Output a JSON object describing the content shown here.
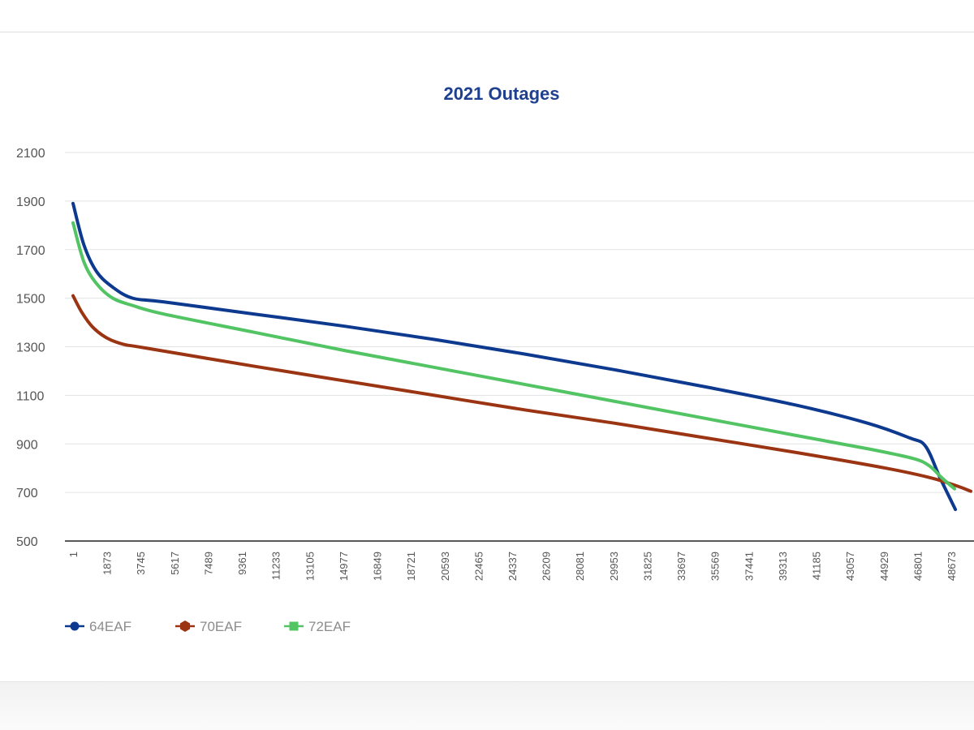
{
  "chart_data": {
    "type": "line",
    "title": "2021 Outages",
    "xlabel": "",
    "ylabel": "",
    "ylim": [
      500,
      2100
    ],
    "yticks": [
      500,
      700,
      900,
      1100,
      1300,
      1500,
      1700,
      1900,
      2100
    ],
    "x_tick_labels": [
      "1",
      "1873",
      "3745",
      "5617",
      "7489",
      "9361",
      "11233",
      "13105",
      "14977",
      "16849",
      "18721",
      "20593",
      "22465",
      "24337",
      "26209",
      "28081",
      "29953",
      "31825",
      "33697",
      "35569",
      "37441",
      "39313",
      "41185",
      "43057",
      "44929",
      "46801",
      "48673"
    ],
    "xlim": [
      1,
      49700
    ],
    "grid": "horizontal",
    "legend_position": "bottom-left",
    "series": [
      {
        "name": "64EAF",
        "color": "#0d3a8e",
        "marker": "circle",
        "points": [
          [
            1,
            1890
          ],
          [
            600,
            1720
          ],
          [
            1300,
            1610
          ],
          [
            2200,
            1545
          ],
          [
            3300,
            1500
          ],
          [
            5000,
            1485
          ],
          [
            10000,
            1435
          ],
          [
            15000,
            1385
          ],
          [
            20000,
            1330
          ],
          [
            25000,
            1270
          ],
          [
            30000,
            1205
          ],
          [
            35000,
            1135
          ],
          [
            40000,
            1060
          ],
          [
            44000,
            985
          ],
          [
            46300,
            925
          ],
          [
            47200,
            890
          ],
          [
            48000,
            760
          ],
          [
            48850,
            630
          ]
        ]
      },
      {
        "name": "70EAF",
        "color": "#9b3412",
        "marker": "hexagon",
        "points": [
          [
            1,
            1510
          ],
          [
            500,
            1440
          ],
          [
            1100,
            1380
          ],
          [
            1900,
            1335
          ],
          [
            2800,
            1310
          ],
          [
            4000,
            1295
          ],
          [
            10000,
            1220
          ],
          [
            15000,
            1160
          ],
          [
            20000,
            1100
          ],
          [
            25000,
            1040
          ],
          [
            30000,
            985
          ],
          [
            35000,
            925
          ],
          [
            40000,
            865
          ],
          [
            45000,
            800
          ],
          [
            47500,
            760
          ],
          [
            49000,
            725
          ],
          [
            49700,
            705
          ]
        ]
      },
      {
        "name": "72EAF",
        "color": "#52c463",
        "marker": "square",
        "points": [
          [
            1,
            1810
          ],
          [
            600,
            1650
          ],
          [
            1300,
            1560
          ],
          [
            2200,
            1500
          ],
          [
            3300,
            1470
          ],
          [
            5000,
            1435
          ],
          [
            10000,
            1360
          ],
          [
            15000,
            1285
          ],
          [
            20000,
            1215
          ],
          [
            25000,
            1145
          ],
          [
            30000,
            1075
          ],
          [
            35000,
            1005
          ],
          [
            40000,
            935
          ],
          [
            44000,
            880
          ],
          [
            46500,
            840
          ],
          [
            47400,
            810
          ],
          [
            48100,
            760
          ],
          [
            48800,
            715
          ]
        ]
      }
    ]
  }
}
